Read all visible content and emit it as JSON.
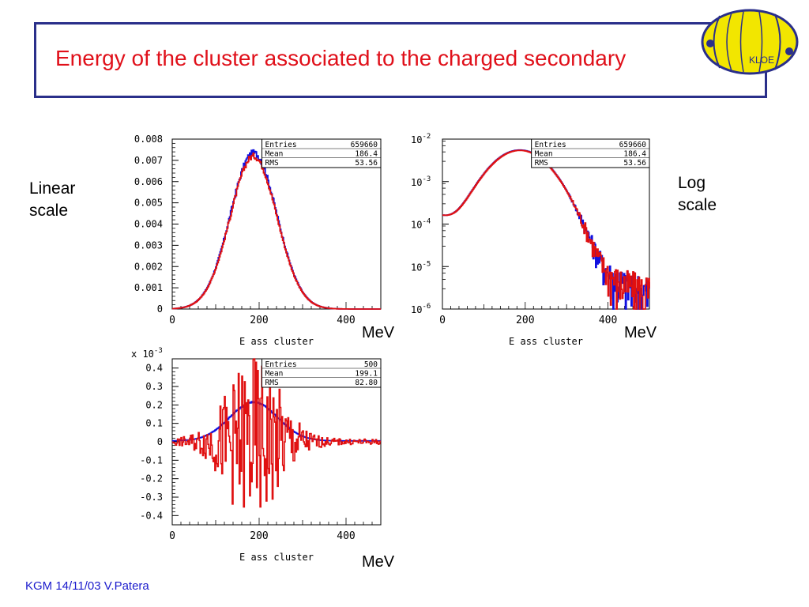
{
  "slide": {
    "title": "Energy of the cluster associated to the charged secondary",
    "logo_text": "KLOE",
    "footer": "KGM 14/11/03 V.Patera",
    "label_linear": "Linear\nscale",
    "label_log": "Log\nscale",
    "unit_mev": "MeV"
  },
  "colors": {
    "title": "#e0101a",
    "frame": "#2a2f8a",
    "series_blue": "#1010e0",
    "series_red": "#e01010",
    "footer": "#1a1acc"
  },
  "chart_data": [
    {
      "type": "line",
      "id": "linear",
      "xlabel": "E ass cluster",
      "xlim": [
        0,
        480
      ],
      "ylim": [
        0,
        0.008
      ],
      "yscale": "linear",
      "xticks": [
        "0",
        "200",
        "400"
      ],
      "yticks": [
        "0",
        "0.001",
        "0.002",
        "0.003",
        "0.004",
        "0.005",
        "0.006",
        "0.007",
        "0.008"
      ],
      "stats": {
        "entries_label": "Entries",
        "entries": "659660",
        "mean_label": "Mean",
        "mean": "186.4",
        "rms_label": "RMS",
        "rms": "53.56"
      },
      "series": [
        {
          "color": "#1010e0",
          "kind": "gauss",
          "mean": 186.4,
          "sigma": 53.56,
          "amplitude": 0.00735
        },
        {
          "color": "#e01010",
          "kind": "gauss",
          "mean": 186.4,
          "sigma": 53.56,
          "amplitude": 0.0072
        }
      ]
    },
    {
      "type": "line",
      "id": "log",
      "xlabel": "E ass cluster",
      "xlim": [
        0,
        500
      ],
      "ylim": [
        1e-06,
        0.01
      ],
      "yscale": "log",
      "xticks": [
        "0",
        "200",
        "400"
      ],
      "yticks": [
        "10^-6",
        "10^-5",
        "10^-4",
        "10^-3",
        "10^-2"
      ],
      "stats": {
        "entries_label": "Entries",
        "entries": "659660",
        "mean_label": "Mean",
        "mean": "186.4",
        "rms_label": "RMS",
        "rms": "53.56"
      },
      "series": [
        {
          "color": "#1010e0",
          "kind": "gauss",
          "mean": 186.4,
          "sigma": 53.56,
          "amplitude": 0.0055
        },
        {
          "color": "#e01010",
          "kind": "gauss",
          "mean": 186.4,
          "sigma": 53.56,
          "amplitude": 0.0054
        }
      ]
    },
    {
      "type": "line",
      "id": "difference",
      "xlabel": "E ass cluster",
      "xlim": [
        0,
        480
      ],
      "ylim": [
        -0.00045,
        0.00045
      ],
      "yscale": "linear",
      "yexponent": "x 10^-3",
      "xticks": [
        "0",
        "200",
        "400"
      ],
      "yticks": [
        "-0.4",
        "-0.3",
        "-0.2",
        "-0.1",
        "0",
        "0.1",
        "0.2",
        "0.3",
        "0.4"
      ],
      "stats": {
        "entries_label": "Entries",
        "entries": "500",
        "mean_label": "Mean",
        "mean": "199.1",
        "rms_label": "RMS",
        "rms": "82.80"
      },
      "series": [
        {
          "color": "#1010e0",
          "kind": "gauss_offset",
          "mean": 186.4,
          "sigma": 55,
          "amplitude": 0.00021,
          "offset": 5e-06
        },
        {
          "color": "#e01010",
          "kind": "noise",
          "mean": 186.4,
          "sigma": 60,
          "amplitude": 0.00045
        }
      ]
    }
  ]
}
